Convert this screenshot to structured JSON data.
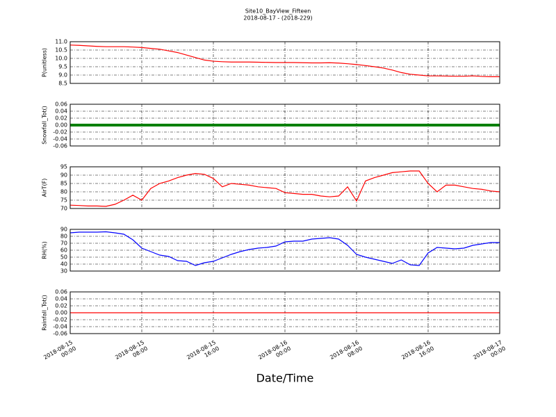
{
  "chart_data": {
    "type": "line",
    "title": "Site10_BayView_Fifteen",
    "subtitle": "2018-08-17 - (2018-229)",
    "xlabel": "Date/Time",
    "grid": true,
    "xlim": [
      "2018-08-15 00:00",
      "2018-08-17 00:00"
    ],
    "xticks": [
      {
        "value": "2018-08-15 00:00",
        "label": "2018-08-15\n00:00"
      },
      {
        "value": "2018-08-15 08:00",
        "label": "2018-08-15\n08:00"
      },
      {
        "value": "2018-08-15 16:00",
        "label": "2018-08-15\n16:00"
      },
      {
        "value": "2018-08-16 00:00",
        "label": "2018-08-16\n00:00"
      },
      {
        "value": "2018-08-16 08:00",
        "label": "2018-08-16\n08:00"
      },
      {
        "value": "2018-08-16 16:00",
        "label": "2018-08-16\n16:00"
      },
      {
        "value": "2018-08-17 00:00",
        "label": "2018-08-17\n00:00"
      }
    ],
    "x": [
      "2018-08-15 00:00",
      "2018-08-15 01:00",
      "2018-08-15 02:00",
      "2018-08-15 03:00",
      "2018-08-15 04:00",
      "2018-08-15 05:00",
      "2018-08-15 06:00",
      "2018-08-15 07:00",
      "2018-08-15 08:00",
      "2018-08-15 09:00",
      "2018-08-15 10:00",
      "2018-08-15 11:00",
      "2018-08-15 12:00",
      "2018-08-15 13:00",
      "2018-08-15 14:00",
      "2018-08-15 15:00",
      "2018-08-15 16:00",
      "2018-08-15 17:00",
      "2018-08-15 18:00",
      "2018-08-15 19:00",
      "2018-08-15 20:00",
      "2018-08-15 21:00",
      "2018-08-15 22:00",
      "2018-08-15 23:00",
      "2018-08-16 00:00",
      "2018-08-16 01:00",
      "2018-08-16 02:00",
      "2018-08-16 03:00",
      "2018-08-16 04:00",
      "2018-08-16 05:00",
      "2018-08-16 06:00",
      "2018-08-16 07:00",
      "2018-08-16 08:00",
      "2018-08-16 09:00",
      "2018-08-16 10:00",
      "2018-08-16 11:00",
      "2018-08-16 12:00",
      "2018-08-16 13:00",
      "2018-08-16 14:00",
      "2018-08-16 15:00",
      "2018-08-16 16:00",
      "2018-08-16 17:00",
      "2018-08-16 18:00",
      "2018-08-16 19:00",
      "2018-08-16 20:00",
      "2018-08-16 21:00",
      "2018-08-16 22:00",
      "2018-08-16 23:00",
      "2018-08-17 00:00"
    ],
    "panels": [
      {
        "ylabel": "P(unitless)",
        "ylim": [
          8.5,
          11.0
        ],
        "yticks": [
          8.5,
          {
            "value": 9,
            "label": "9.0"
          },
          9.5,
          {
            "value": 10,
            "label": "10.0"
          },
          10.5,
          {
            "value": 11,
            "label": "11.0"
          }
        ],
        "series": [
          {
            "color": "#ff0000",
            "width": 1.2,
            "values": [
              10.8,
              10.78,
              10.75,
              10.72,
              10.7,
              10.7,
              10.7,
              10.68,
              10.65,
              10.6,
              10.55,
              10.45,
              10.35,
              10.2,
              10.05,
              9.9,
              9.83,
              9.8,
              9.78,
              9.78,
              9.78,
              9.77,
              9.76,
              9.75,
              9.75,
              9.75,
              9.74,
              9.73,
              9.73,
              9.74,
              9.72,
              9.68,
              9.63,
              9.57,
              9.5,
              9.42,
              9.3,
              9.15,
              9.05,
              9.0,
              8.95,
              8.95,
              8.94,
              8.93,
              8.93,
              8.95,
              8.92,
              8.9,
              8.9
            ]
          }
        ]
      },
      {
        "ylabel": "Snowfall_Tot()",
        "ylim": [
          -0.06,
          0.06
        ],
        "yticks": [
          -0.06,
          -0.04,
          -0.02,
          {
            "value": 0,
            "label": "0.00"
          },
          0.02,
          0.04,
          0.06
        ],
        "series": [
          {
            "color": "#008000",
            "width": 4,
            "values": [
              0,
              0,
              0,
              0,
              0,
              0,
              0,
              0,
              0,
              0,
              0,
              0,
              0,
              0,
              0,
              0,
              0,
              0,
              0,
              0,
              0,
              0,
              0,
              0,
              0,
              0,
              0,
              0,
              0,
              0,
              0,
              0,
              0,
              0,
              0,
              0,
              0,
              0,
              0,
              0,
              0,
              0,
              0,
              0,
              0,
              0,
              0,
              0,
              0
            ]
          }
        ]
      },
      {
        "ylabel": "AirT(F)",
        "ylim": [
          70,
          95
        ],
        "yticks": [
          70,
          75,
          80,
          85,
          90,
          95
        ],
        "series": [
          {
            "color": "#ff0000",
            "width": 1.2,
            "values": [
              72,
              71.8,
              71.5,
              71.5,
              71.3,
              72.5,
              75,
              78,
              75,
              82,
              85,
              86.5,
              88.5,
              90,
              91,
              90.5,
              88,
              83,
              85,
              84.5,
              84,
              83,
              82.5,
              82,
              79.5,
              79,
              78.5,
              78.5,
              77.5,
              77,
              77.5,
              83,
              74.5,
              86.5,
              88.5,
              90,
              91.5,
              92,
              92.5,
              92.5,
              85,
              80,
              84,
              84,
              83,
              82,
              81.5,
              80.5,
              80
            ]
          }
        ]
      },
      {
        "ylabel": "RH(%)",
        "ylim": [
          30,
          90
        ],
        "yticks": [
          30,
          40,
          50,
          60,
          70,
          80,
          90
        ],
        "series": [
          {
            "color": "#0000ff",
            "width": 1.2,
            "values": [
              85,
              86,
              86,
              86,
              86.5,
              85,
              83,
              75,
              63,
              58,
              53,
              51,
              45,
              44,
              38,
              42,
              44,
              49,
              54,
              58,
              61,
              63,
              64,
              66,
              72,
              73,
              73,
              76,
              77,
              78,
              76,
              67,
              54,
              50,
              47,
              44,
              41,
              46,
              39,
              38,
              56,
              64,
              63,
              62,
              63,
              67,
              69,
              71,
              71
            ]
          }
        ]
      },
      {
        "ylabel": "Rainfall_Tot()",
        "ylim": [
          -0.06,
          0.06
        ],
        "yticks": [
          -0.06,
          -0.04,
          -0.02,
          {
            "value": 0,
            "label": "0.00"
          },
          0.02,
          0.04,
          0.06
        ],
        "series": [
          {
            "color": "#ff0000",
            "width": 1.2,
            "values": [
              0,
              0,
              0,
              0,
              0,
              0,
              0,
              0,
              0,
              0,
              0,
              0,
              0,
              0,
              0,
              0,
              0,
              0,
              0,
              0,
              0,
              0,
              0,
              0,
              0,
              0,
              0,
              0,
              0,
              0,
              0,
              0,
              0,
              0,
              0,
              0,
              0,
              0,
              0,
              0,
              0,
              0,
              0,
              0,
              0,
              0,
              0,
              0,
              0
            ]
          }
        ]
      }
    ]
  }
}
